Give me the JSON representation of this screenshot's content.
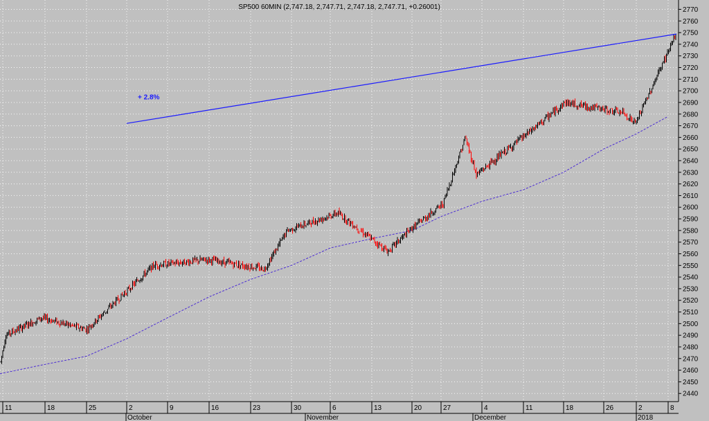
{
  "chart_data": {
    "type": "candlestick",
    "title": "SP500 60MIN (2,747.18, 2,747.71, 2,747.18, 2,747.71, +0.26001)",
    "y_axis": {
      "side": "right",
      "min": 2433,
      "max": 2778,
      "ticks": [
        2440,
        2450,
        2460,
        2470,
        2480,
        2490,
        2500,
        2510,
        2520,
        2530,
        2540,
        2550,
        2560,
        2570,
        2580,
        2590,
        2600,
        2610,
        2620,
        2630,
        2640,
        2650,
        2660,
        2670,
        2680,
        2690,
        2700,
        2710,
        2720,
        2730,
        2740,
        2750,
        2760,
        2770
      ]
    },
    "x_axis": {
      "day_labels": [
        "11",
        "18",
        "25",
        "2",
        "9",
        "16",
        "23",
        "30",
        "6",
        "13",
        "20",
        "27",
        "4",
        "11",
        "18",
        "26",
        "2",
        "8"
      ],
      "month_labels": [
        "October",
        "November",
        "December",
        "2018"
      ]
    },
    "grid": true,
    "series": [
      {
        "style": "ohlc-bars",
        "up_color": "#000000",
        "down_color": "#ff0000",
        "approx_close_path": [
          [
            "11",
            2464
          ],
          [
            "11",
            2490
          ],
          [
            "18",
            2505
          ],
          [
            "25",
            2495
          ],
          [
            "2",
            2550
          ],
          [
            "9",
            2552
          ],
          [
            "16",
            2560
          ],
          [
            "23",
            2547
          ],
          [
            "30",
            2580
          ],
          [
            "6",
            2590
          ],
          [
            "13",
            2565
          ],
          [
            "20",
            2582
          ],
          [
            "27",
            2603
          ],
          [
            "4",
            2660
          ],
          [
            "4",
            2628
          ],
          [
            "11",
            2670
          ],
          [
            "18",
            2690
          ],
          [
            "26",
            2681
          ],
          [
            "2",
            2672
          ],
          [
            "8",
            2747
          ]
        ]
      },
      {
        "style": "dashed-line",
        "color": "#4a2bd4",
        "approx_path": [
          [
            "11",
            2457
          ],
          [
            "18",
            2465
          ],
          [
            "25",
            2472
          ],
          [
            "2",
            2487
          ],
          [
            "9",
            2505
          ],
          [
            "16",
            2523
          ],
          [
            "23",
            2538
          ],
          [
            "30",
            2550
          ],
          [
            "6",
            2565
          ],
          [
            "13",
            2573
          ],
          [
            "20",
            2580
          ],
          [
            "27",
            2592
          ],
          [
            "4",
            2605
          ],
          [
            "11",
            2615
          ],
          [
            "18",
            2630
          ],
          [
            "26",
            2650
          ],
          [
            "2",
            2663
          ],
          [
            "8",
            2678
          ]
        ]
      }
    ],
    "annotations": [
      {
        "type": "trendline",
        "color": "#1a1aff",
        "from": [
          "2",
          2672
        ],
        "to": [
          "8",
          2747
        ]
      },
      {
        "type": "text",
        "text": "+ 2.8%",
        "color": "#1a1aff",
        "at": [
          "2",
          2695
        ]
      }
    ]
  }
}
